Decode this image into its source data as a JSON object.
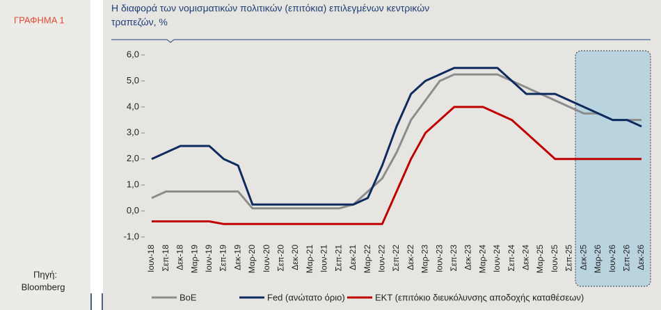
{
  "panel": {
    "label": "ΓΡΑΦΗΜΑ 1",
    "source_label": "Πηγή:",
    "source": "Bloomberg"
  },
  "chart_data": {
    "type": "line",
    "title": "Η διαφορά των νομισματικών πολιτικών (επιτόκια) επιλεγμένων κεντρικών",
    "title_line2": "τραπεζών, %",
    "categories": [
      "Ιουν-18",
      "Σεπ-18",
      "Δεκ-18",
      "Μαρ-19",
      "Ιουν-19",
      "Σεπ-19",
      "Δεκ-19",
      "Μαρ-20",
      "Ιουν-20",
      "Σεπ-20",
      "Δεκ-20",
      "Μαρ-21",
      "Ιουν-21",
      "Σεπ-21",
      "Δεκ-21",
      "Μαρ-22",
      "Ιουν-22",
      "Σεπ-22",
      "Δεκ-22",
      "Μαρ-23",
      "Ιουν-23",
      "Σεπ-23",
      "Δεκ-23",
      "Μαρ-24",
      "Ιουν-24",
      "Σεπ-24",
      "Δεκ-24",
      "Μαρ-25",
      "Ιουν-25",
      "Σεπ-25",
      "Δεκ-25",
      "Μαρ-26",
      "Ιουν-26",
      "Σεπ-26",
      "Δεκ-26"
    ],
    "series": [
      {
        "name": "BoE",
        "color": "#8c8c8c",
        "values": [
          0.5,
          0.75,
          0.75,
          0.75,
          0.75,
          0.75,
          0.75,
          0.1,
          0.1,
          0.1,
          0.1,
          0.1,
          0.1,
          0.1,
          0.25,
          0.75,
          1.25,
          2.25,
          3.5,
          4.25,
          5.0,
          5.25,
          5.25,
          5.25,
          5.25,
          5.0,
          4.75,
          4.5,
          4.25,
          4.0,
          3.75,
          3.75,
          3.5,
          3.5,
          3.5
        ]
      },
      {
        "name": "Fed (ανώτατο όριο)",
        "color": "#0d2b5e",
        "values": [
          2.0,
          2.25,
          2.5,
          2.5,
          2.5,
          2.0,
          1.75,
          0.25,
          0.25,
          0.25,
          0.25,
          0.25,
          0.25,
          0.25,
          0.25,
          0.5,
          1.75,
          3.25,
          4.5,
          5.0,
          5.25,
          5.5,
          5.5,
          5.5,
          5.5,
          5.0,
          4.5,
          4.5,
          4.5,
          4.25,
          4.0,
          3.75,
          3.5,
          3.5,
          3.25
        ]
      },
      {
        "name": "ΕΚΤ (επιτόκιο διευκόλυνσης αποδοχής καταθέσεων)",
        "color": "#c00000",
        "values": [
          -0.4,
          -0.4,
          -0.4,
          -0.4,
          -0.4,
          -0.5,
          -0.5,
          -0.5,
          -0.5,
          -0.5,
          -0.5,
          -0.5,
          -0.5,
          -0.5,
          -0.5,
          -0.5,
          -0.5,
          0.75,
          2.0,
          3.0,
          3.5,
          4.0,
          4.0,
          4.0,
          3.75,
          3.5,
          3.0,
          2.5,
          2.0,
          2.0,
          2.0,
          2.0,
          2.0,
          2.0,
          2.0
        ]
      }
    ],
    "ylim": [
      -1,
      6
    ],
    "yticks": [
      {
        "value": -1,
        "label": "-1,0"
      },
      {
        "value": 0,
        "label": "0,0"
      },
      {
        "value": 1,
        "label": "1,0"
      },
      {
        "value": 2,
        "label": "2,0"
      },
      {
        "value": 3,
        "label": "3,0"
      },
      {
        "value": 4,
        "label": "4,0"
      },
      {
        "value": 5,
        "label": "5,0"
      },
      {
        "value": 6,
        "label": "6,0"
      }
    ],
    "legend": "bottom"
  }
}
